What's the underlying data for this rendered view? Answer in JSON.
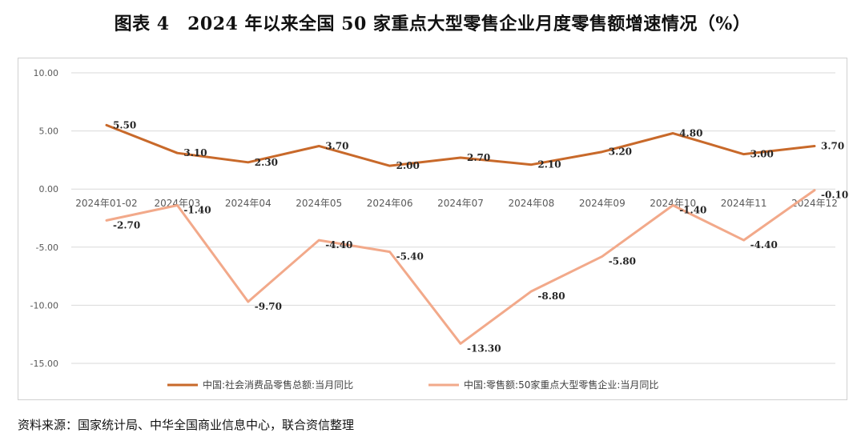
{
  "title": "图表 4　2024 年以来全国 50 家重点大型零售企业月度零售额增速情况（%）",
  "source": "资料来源：国家统计局、中华全国商业信息中心，联合资信整理",
  "chart_data": {
    "type": "line",
    "categories": [
      "2024年01-02",
      "2024年03",
      "2024年04",
      "2024年05",
      "2024年06",
      "2024年07",
      "2024年08",
      "2024年09",
      "2024年10",
      "2024年11",
      "2024年12"
    ],
    "yticks": [
      "10.00",
      "5.00",
      "0.00",
      "-5.00",
      "-10.00",
      "-15.00"
    ],
    "ylim": [
      -15,
      10
    ],
    "grid": true,
    "legend_position": "bottom",
    "series": [
      {
        "name": "中国:社会消费品零售总额:当月同比",
        "color": "#C8692A",
        "values": [
          5.5,
          3.1,
          2.3,
          3.7,
          2.0,
          2.7,
          2.1,
          3.2,
          4.8,
          3.0,
          3.7
        ],
        "labels": [
          "5.50",
          "3.10",
          "2.30",
          "3.70",
          "2.00",
          "2.70",
          "2.10",
          "3.20",
          "4.80",
          "3.00",
          "3.70"
        ]
      },
      {
        "name": "中国:零售额:50家重点大型零售企业:当月同比",
        "color": "#F2A98A",
        "values": [
          -2.7,
          -1.4,
          -9.7,
          -4.4,
          -5.4,
          -13.3,
          -8.8,
          -5.8,
          -1.4,
          -4.4,
          -0.1
        ],
        "labels": [
          "-2.70",
          "-1.40",
          "-9.70",
          "-4.40",
          "-5.40",
          "-13.30",
          "-8.80",
          "-5.80",
          "-1.40",
          "-4.40",
          "-0.10"
        ]
      }
    ]
  }
}
